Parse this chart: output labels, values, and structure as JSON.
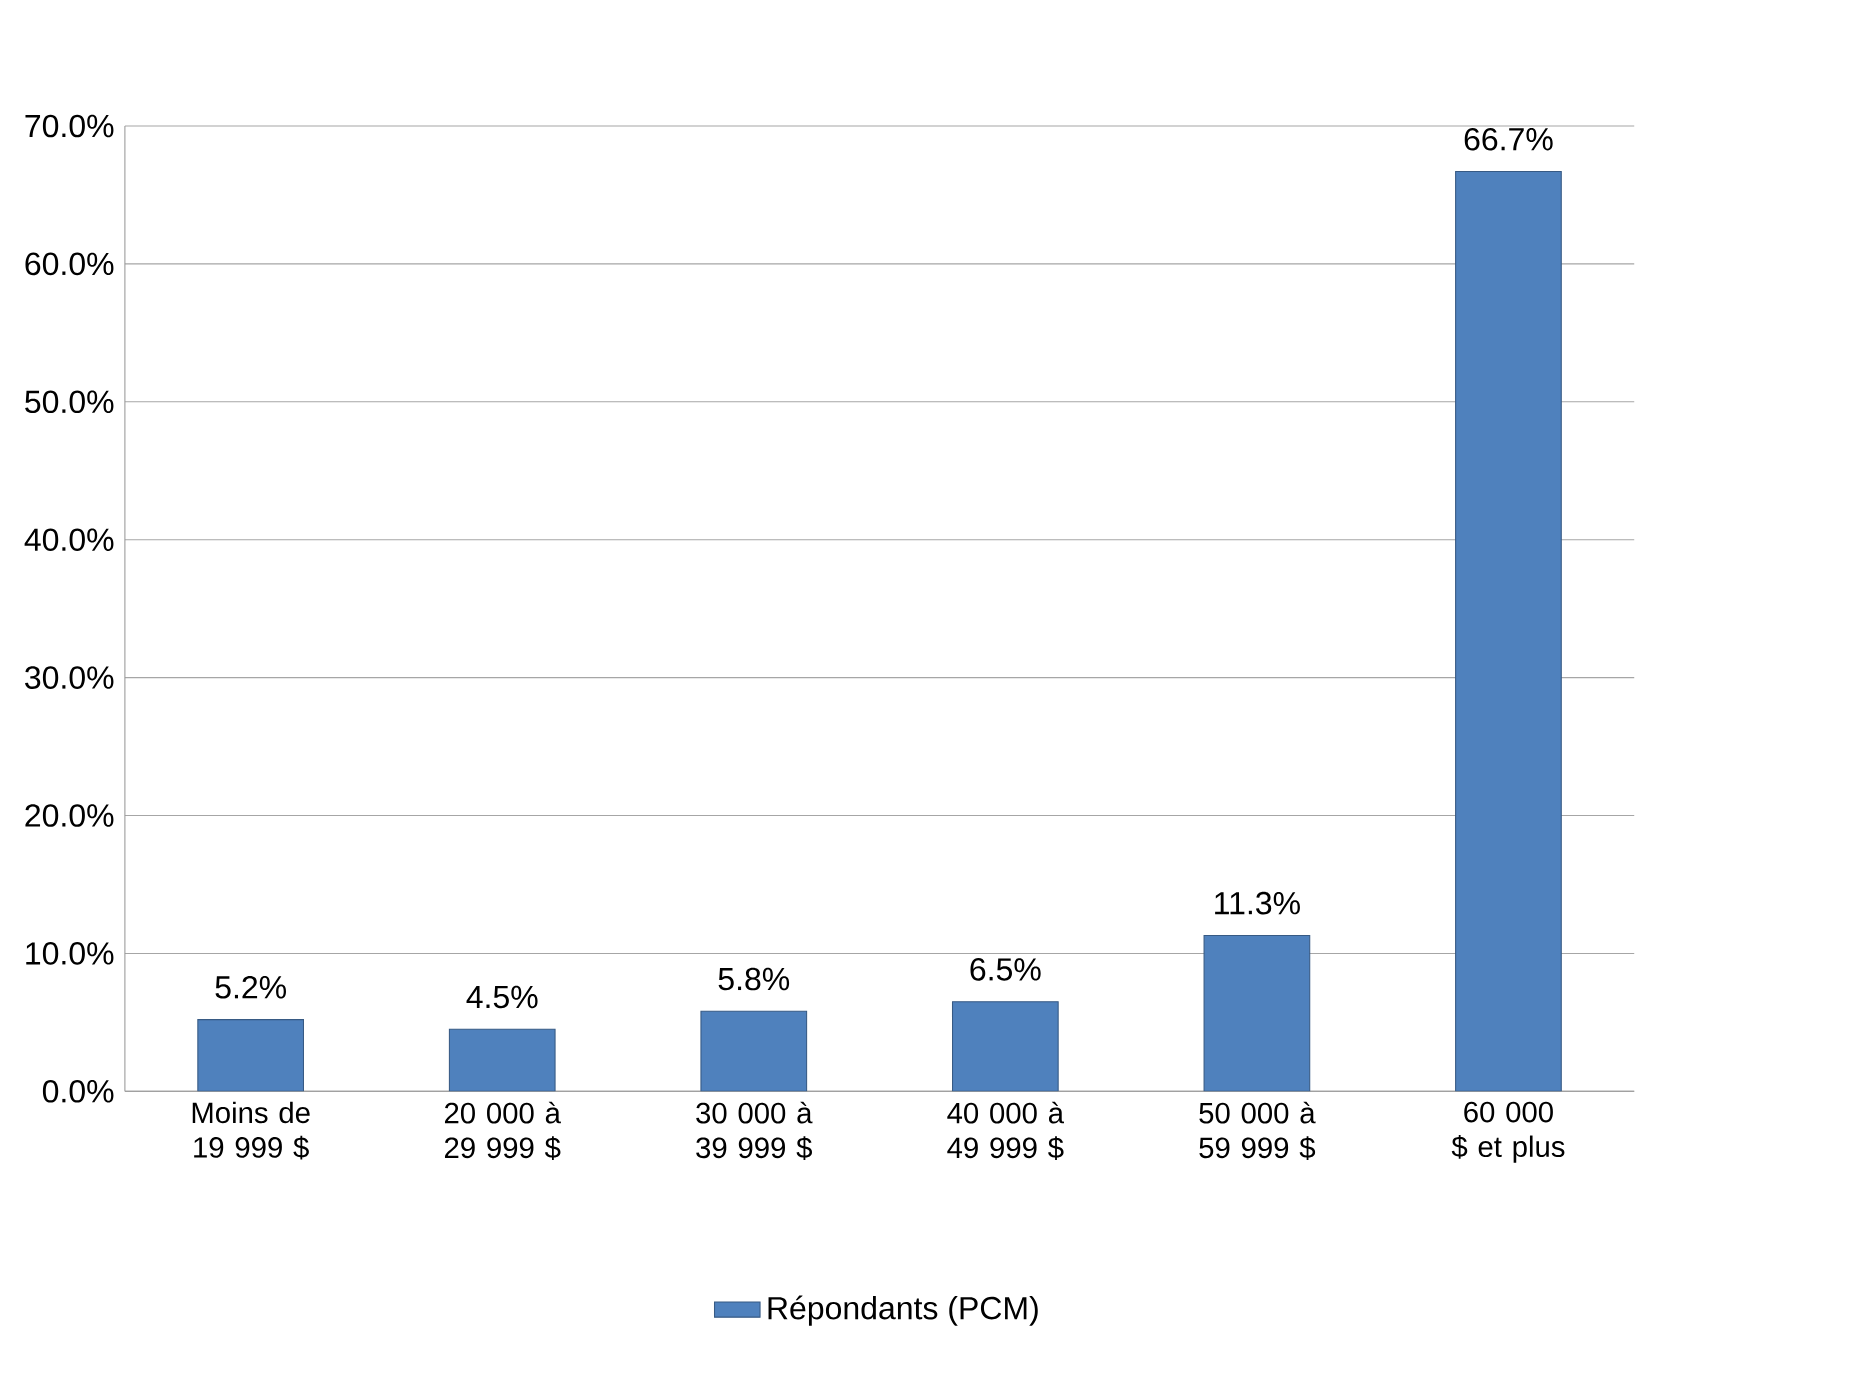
{
  "chart_data": {
    "type": "bar",
    "categories": [
      "Moins de 19 999 $",
      "20 000 à 29 999 $",
      "30 000 à 39 999 $",
      "40 000 à 49 999 $",
      "50 000 à 59 999 $",
      "60 000 $ et plus"
    ],
    "series": [
      {
        "name": "Répondants (PCM)",
        "color": "#4f81bd",
        "values": [
          5.2,
          4.5,
          5.8,
          6.5,
          11.3,
          66.7
        ],
        "value_labels": [
          "5.2%",
          "4.5%",
          "5.8%",
          "6.5%",
          "11.3%",
          "66.7%"
        ]
      }
    ],
    "ylim": [
      0,
      70
    ],
    "yticks": [
      {
        "value": 0,
        "label": "0.0%"
      },
      {
        "value": 10,
        "label": "10.0%"
      },
      {
        "value": 20,
        "label": "20.0%"
      },
      {
        "value": 30,
        "label": "30.0%"
      },
      {
        "value": 40,
        "label": "40.0%"
      },
      {
        "value": 50,
        "label": "50.0%"
      },
      {
        "value": 60,
        "label": "60.0%"
      },
      {
        "value": 70,
        "label": "70.0%"
      }
    ],
    "grid": "y",
    "legend": "bottom"
  }
}
